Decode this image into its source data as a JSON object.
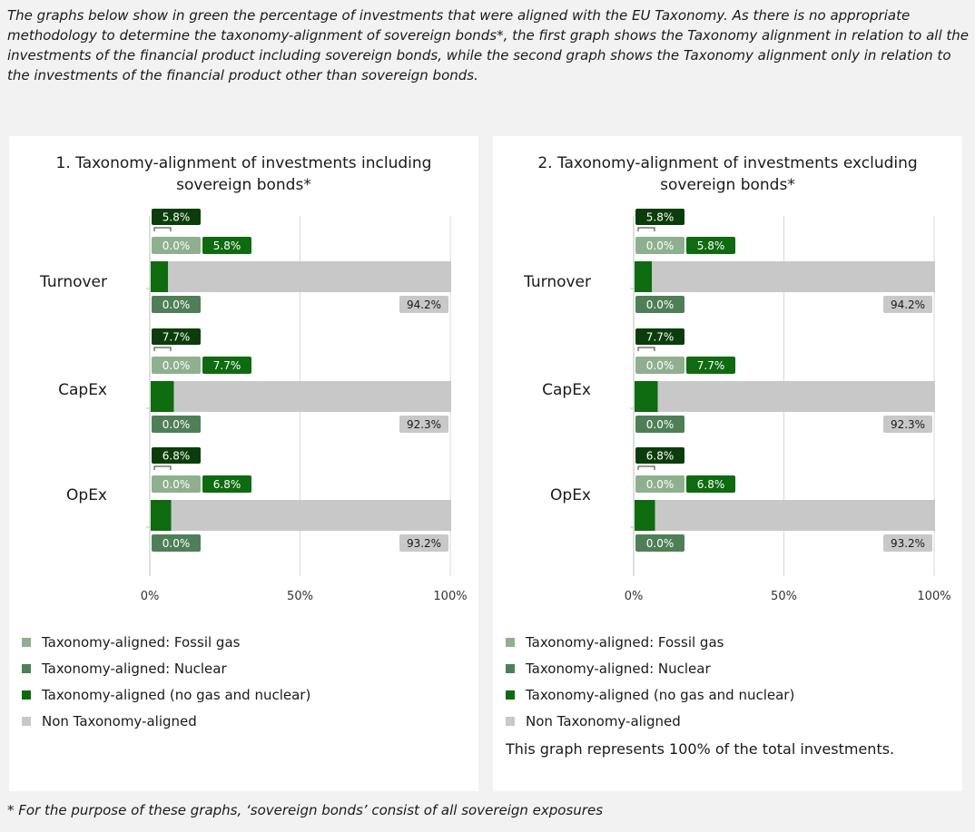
{
  "intro_text": "The graphs below show in green the percentage of investments that were aligned with the EU Taxonomy. As there is no appropriate methodology to determine the taxonomy-alignment of sovereign bonds*, the first graph shows the Taxonomy alignment in relation to all the investments of the financial product including sovereign bonds, while the second graph shows the Taxonomy alignment only in relation to the investments of the financial product other than sovereign bonds.",
  "colors": {
    "fossil_gas": "#8fb08f",
    "nuclear": "#4f7f57",
    "no_gas_nuclear": "#0f6b0f",
    "total_label": "#0b3d0b",
    "non_aligned": "#c8c8c8",
    "grid": "#d9d9d9"
  },
  "legend": [
    {
      "label": "Taxonomy-aligned: Fossil gas",
      "color": "#8fb08f"
    },
    {
      "label": "Taxonomy-aligned: Nuclear",
      "color": "#4f7f57"
    },
    {
      "label": "Taxonomy-aligned (no gas and nuclear)",
      "color": "#0f6b0f"
    },
    {
      "label": "Non Taxonomy-aligned",
      "color": "#c8c8c8"
    }
  ],
  "chart_data": [
    {
      "type": "bar",
      "orientation": "horizontal",
      "stacked": true,
      "title_lines": [
        "1. Taxonomy-alignment of investments including",
        "sovereign bonds*"
      ],
      "categories": [
        "Turnover",
        "CapEx",
        "OpEx"
      ],
      "series": [
        {
          "name": "Taxonomy-aligned: Fossil gas",
          "values": [
            0.0,
            0.0,
            0.0
          ]
        },
        {
          "name": "Taxonomy-aligned: Nuclear",
          "values": [
            0.0,
            0.0,
            0.0
          ]
        },
        {
          "name": "Taxonomy-aligned (no gas and nuclear)",
          "values": [
            5.8,
            7.7,
            6.8
          ]
        },
        {
          "name": "Non Taxonomy-aligned",
          "values": [
            94.2,
            92.3,
            93.2
          ]
        }
      ],
      "labels": {
        "total": [
          "5.8%",
          "7.7%",
          "6.8%"
        ],
        "fossil_gas": [
          "0.0%",
          "0.0%",
          "0.0%"
        ],
        "no_gas_nuclear": [
          "5.8%",
          "7.7%",
          "6.8%"
        ],
        "nuclear": [
          "0.0%",
          "0.0%",
          "0.0%"
        ],
        "non_aligned": [
          "94.2%",
          "92.3%",
          "93.2%"
        ]
      },
      "xticks": [
        "0%",
        "50%",
        "100%"
      ],
      "xlim": [
        0,
        100
      ],
      "grid": true
    },
    {
      "type": "bar",
      "orientation": "horizontal",
      "stacked": true,
      "title_lines": [
        "2. Taxonomy-alignment of investments excluding",
        "sovereign bonds*"
      ],
      "categories": [
        "Turnover",
        "CapEx",
        "OpEx"
      ],
      "series": [
        {
          "name": "Taxonomy-aligned: Fossil gas",
          "values": [
            0.0,
            0.0,
            0.0
          ]
        },
        {
          "name": "Taxonomy-aligned: Nuclear",
          "values": [
            0.0,
            0.0,
            0.0
          ]
        },
        {
          "name": "Taxonomy-aligned (no gas and nuclear)",
          "values": [
            5.8,
            7.7,
            6.8
          ]
        },
        {
          "name": "Non Taxonomy-aligned",
          "values": [
            94.2,
            92.3,
            93.2
          ]
        }
      ],
      "labels": {
        "total": [
          "5.8%",
          "7.7%",
          "6.8%"
        ],
        "fossil_gas": [
          "0.0%",
          "0.0%",
          "0.0%"
        ],
        "no_gas_nuclear": [
          "5.8%",
          "7.7%",
          "6.8%"
        ],
        "nuclear": [
          "0.0%",
          "0.0%",
          "0.0%"
        ],
        "non_aligned": [
          "94.2%",
          "92.3%",
          "93.2%"
        ]
      },
      "xticks": [
        "0%",
        "50%",
        "100%"
      ],
      "xlim": [
        0,
        100
      ],
      "grid": true
    }
  ],
  "panel_2_note": "This graph represents 100% of the total investments.",
  "footnote": "* For the purpose of these graphs, ‘sovereign bonds’ consist of all sovereign exposures"
}
